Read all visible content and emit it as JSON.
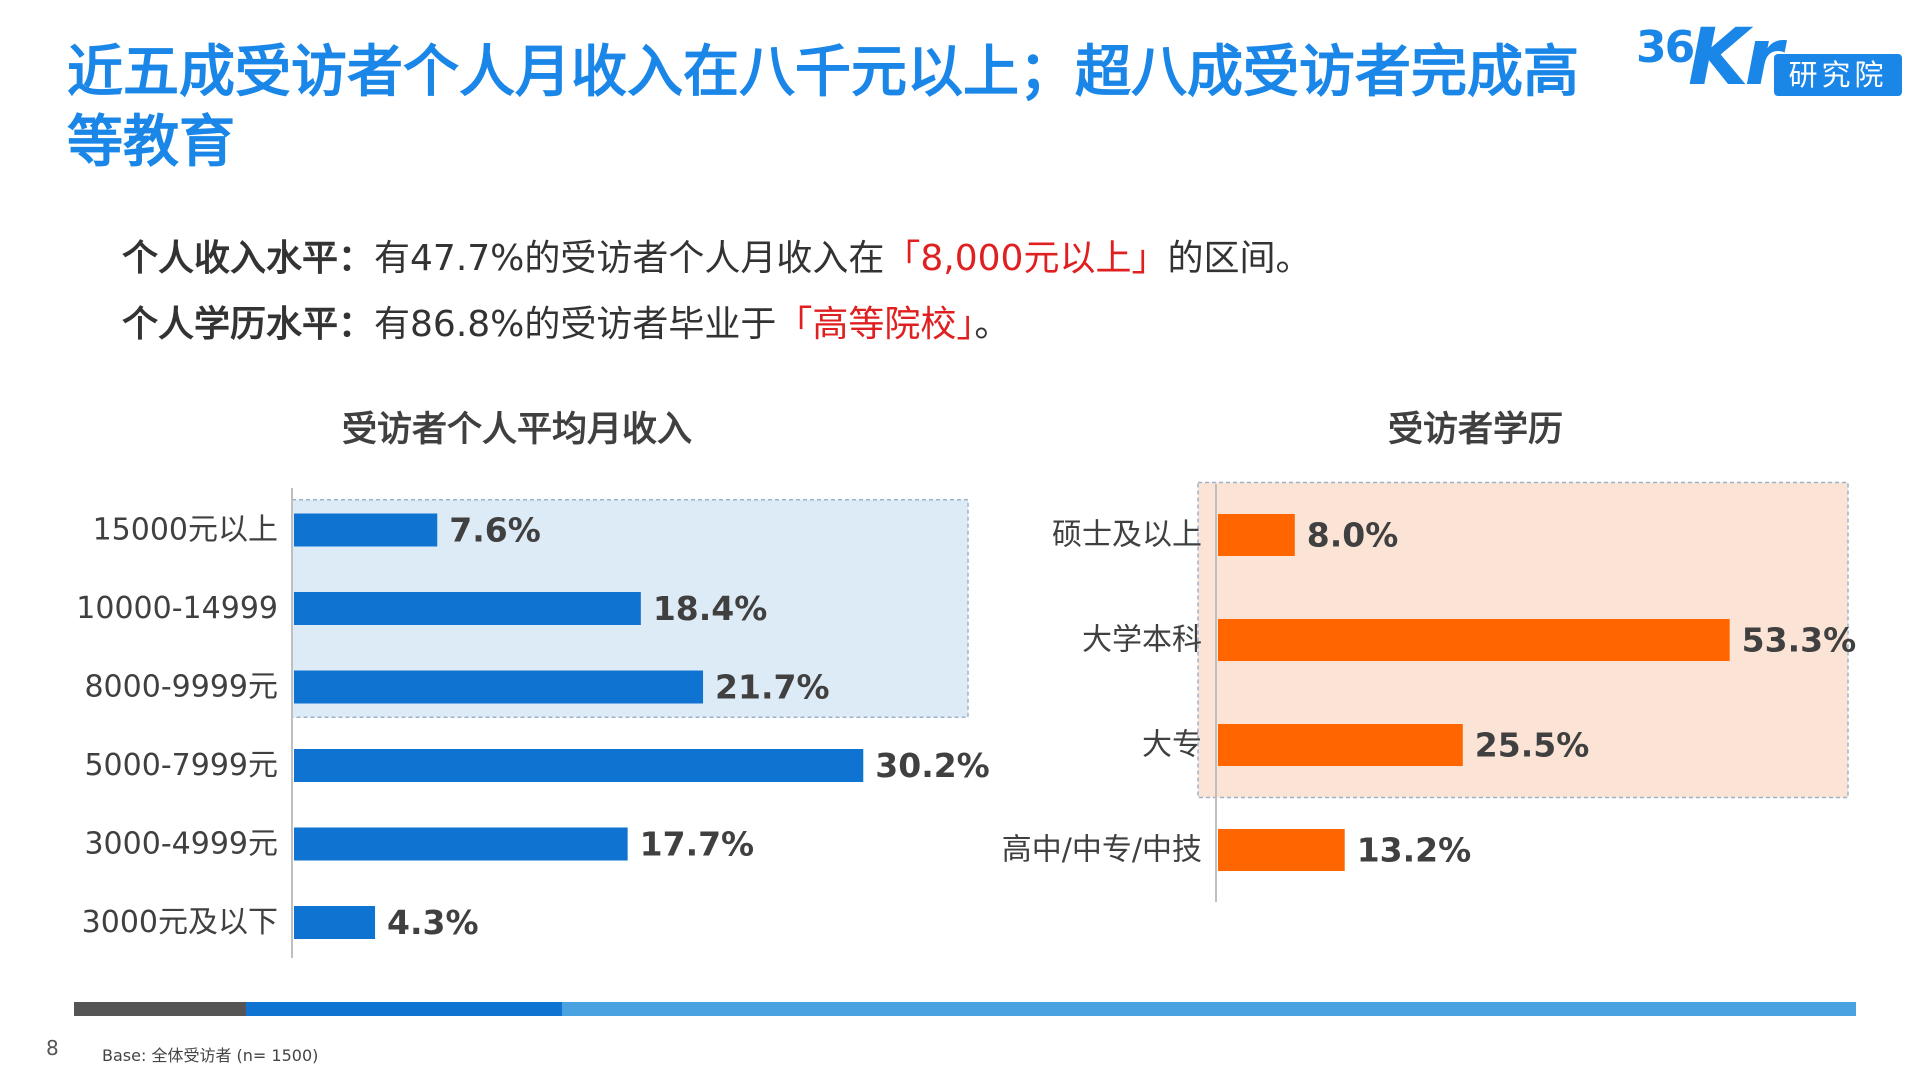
{
  "title": "近五成受访者个人月收入在八千元以上；超八成受访者完成高等教育",
  "logo": {
    "mark": "36Kr",
    "badge": "研究院"
  },
  "summary": {
    "income": {
      "label": "个人收入水平：",
      "text_before": "有47.7%的受访者个人月收入在",
      "highlight": "「8,000元以上」",
      "text_after": "的区间。"
    },
    "education": {
      "label": "个人学历水平：",
      "text_before": "有86.8%的受访者毕业于",
      "highlight": "「高等院校」",
      "text_after": "。"
    }
  },
  "chart_data": [
    {
      "type": "bar",
      "orientation": "horizontal",
      "title": "受访者个人平均月收入",
      "categories": [
        "15000元以上",
        "10000-14999",
        "8000-9999元",
        "5000-7999元",
        "3000-4999元",
        "3000元及以下"
      ],
      "values": [
        7.6,
        18.4,
        21.7,
        30.2,
        17.7,
        4.3
      ],
      "value_labels": [
        "7.6%",
        "18.4%",
        "21.7%",
        "30.2%",
        "17.7%",
        "4.3%"
      ],
      "unit": "%",
      "bar_color": "#0f73d1",
      "highlight_color": "#ddebf7",
      "highlighted_categories": [
        "15000元以上",
        "10000-14999",
        "8000-9999元"
      ],
      "grid": false,
      "legend": "none"
    },
    {
      "type": "bar",
      "orientation": "horizontal",
      "title": "受访者学历",
      "categories": [
        "硕士及以上",
        "大学本科",
        "大专",
        "高中/中专/中技"
      ],
      "values": [
        8.0,
        53.3,
        25.5,
        13.2
      ],
      "value_labels": [
        "8.0%",
        "53.3%",
        "25.5%",
        "13.2%"
      ],
      "unit": "%",
      "bar_color": "#ff6600",
      "highlight_color": "#fbe4d6",
      "highlighted_categories": [
        "硕士及以上",
        "大学本科",
        "大专"
      ],
      "grid": false,
      "legend": "none"
    }
  ],
  "footer": {
    "page_number": "8",
    "base_note": "Base: 全体受访者 (n= 1500)"
  },
  "colors": {
    "title": "#1a86e8",
    "highlight_text": "#e02020",
    "strip": [
      "#555555",
      "#0f73d1",
      "#4aa3e0"
    ]
  }
}
